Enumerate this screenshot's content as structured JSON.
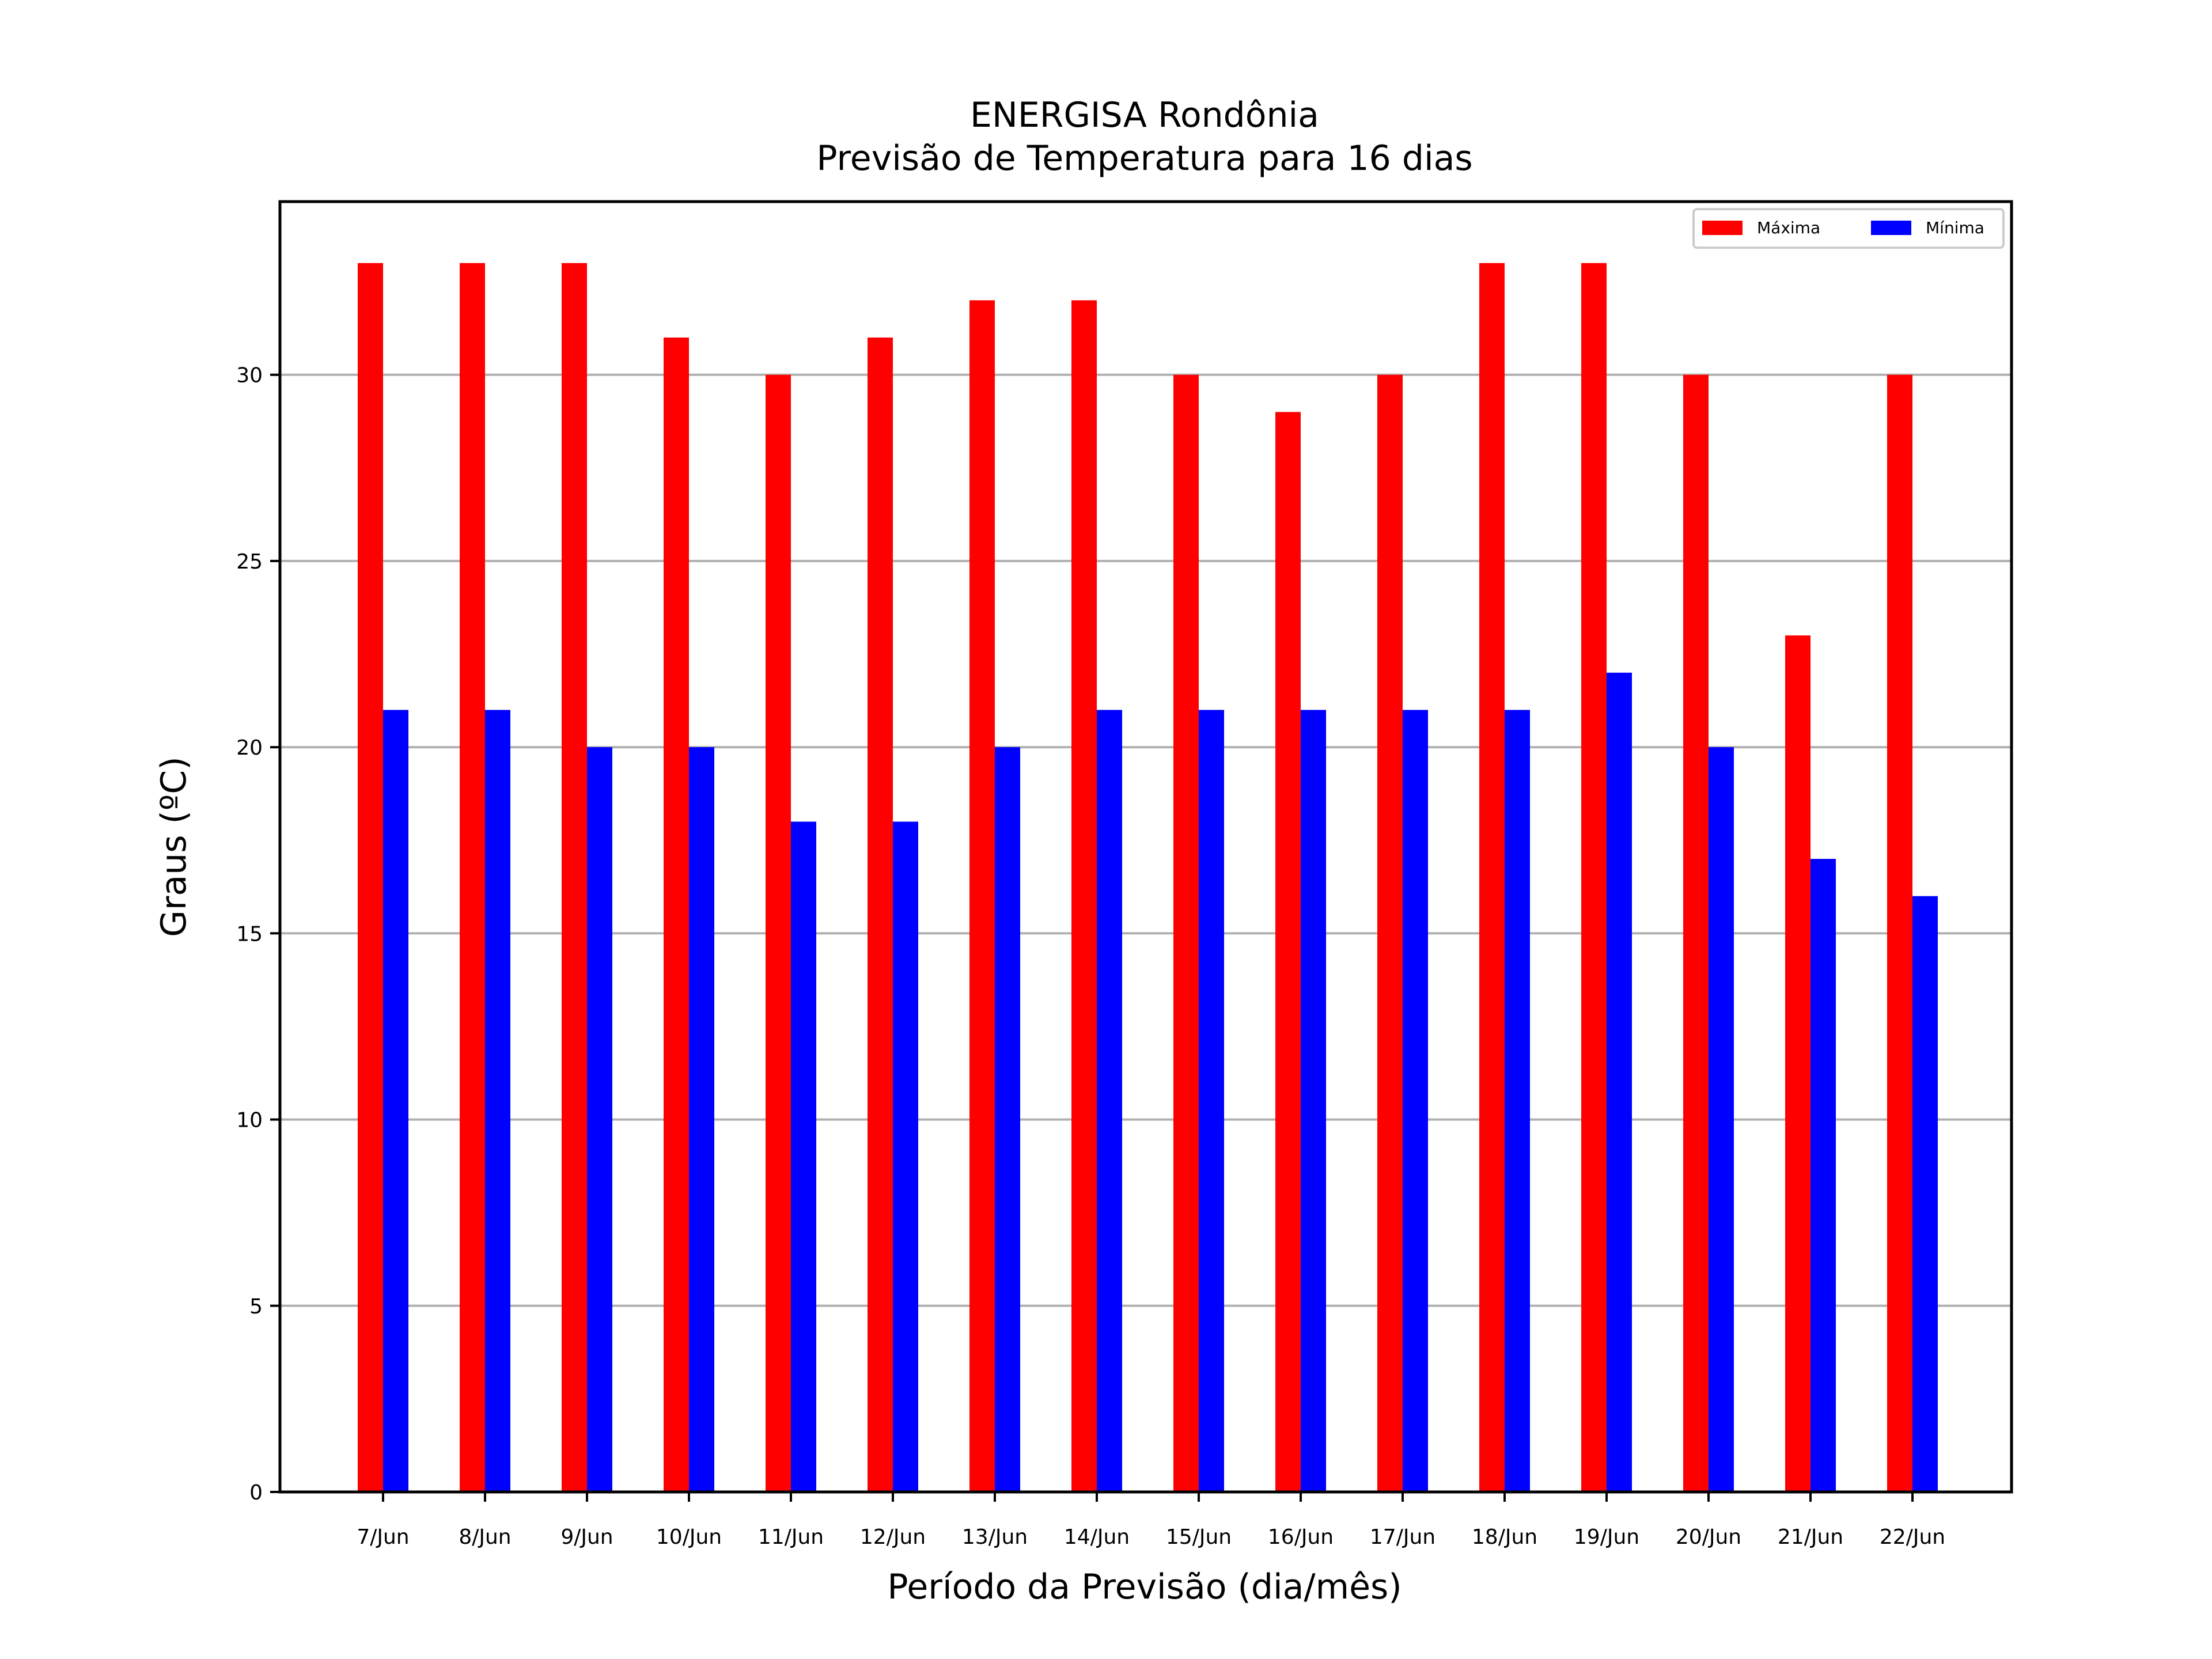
{
  "chart_data": {
    "type": "bar",
    "title": "ENERGISA Rondônia",
    "subtitle": "Previsão de Temperatura para 16 dias",
    "xlabel": "Período da Previsão (dia/mês)",
    "ylabel": "Graus (ºC)",
    "categories": [
      "7/Jun",
      "8/Jun",
      "9/Jun",
      "10/Jun",
      "11/Jun",
      "12/Jun",
      "13/Jun",
      "14/Jun",
      "15/Jun",
      "16/Jun",
      "17/Jun",
      "18/Jun",
      "19/Jun",
      "20/Jun",
      "21/Jun",
      "22/Jun"
    ],
    "series": [
      {
        "name": "Máxima",
        "color": "#ff0000",
        "values": [
          33,
          33,
          33,
          31,
          30,
          31,
          32,
          32,
          30,
          29,
          30,
          33,
          33,
          30,
          23,
          30
        ]
      },
      {
        "name": "Mínima",
        "color": "#0000ff",
        "values": [
          21,
          21,
          20,
          20,
          18,
          18,
          20,
          21,
          21,
          21,
          21,
          21,
          22,
          20,
          17,
          16
        ]
      }
    ],
    "yticks": [
      0,
      5,
      10,
      15,
      20,
      25,
      30
    ],
    "ylim": [
      0,
      34.65
    ],
    "grid": "horizontal",
    "legend_position": "top-right",
    "legend_columns": 2
  }
}
